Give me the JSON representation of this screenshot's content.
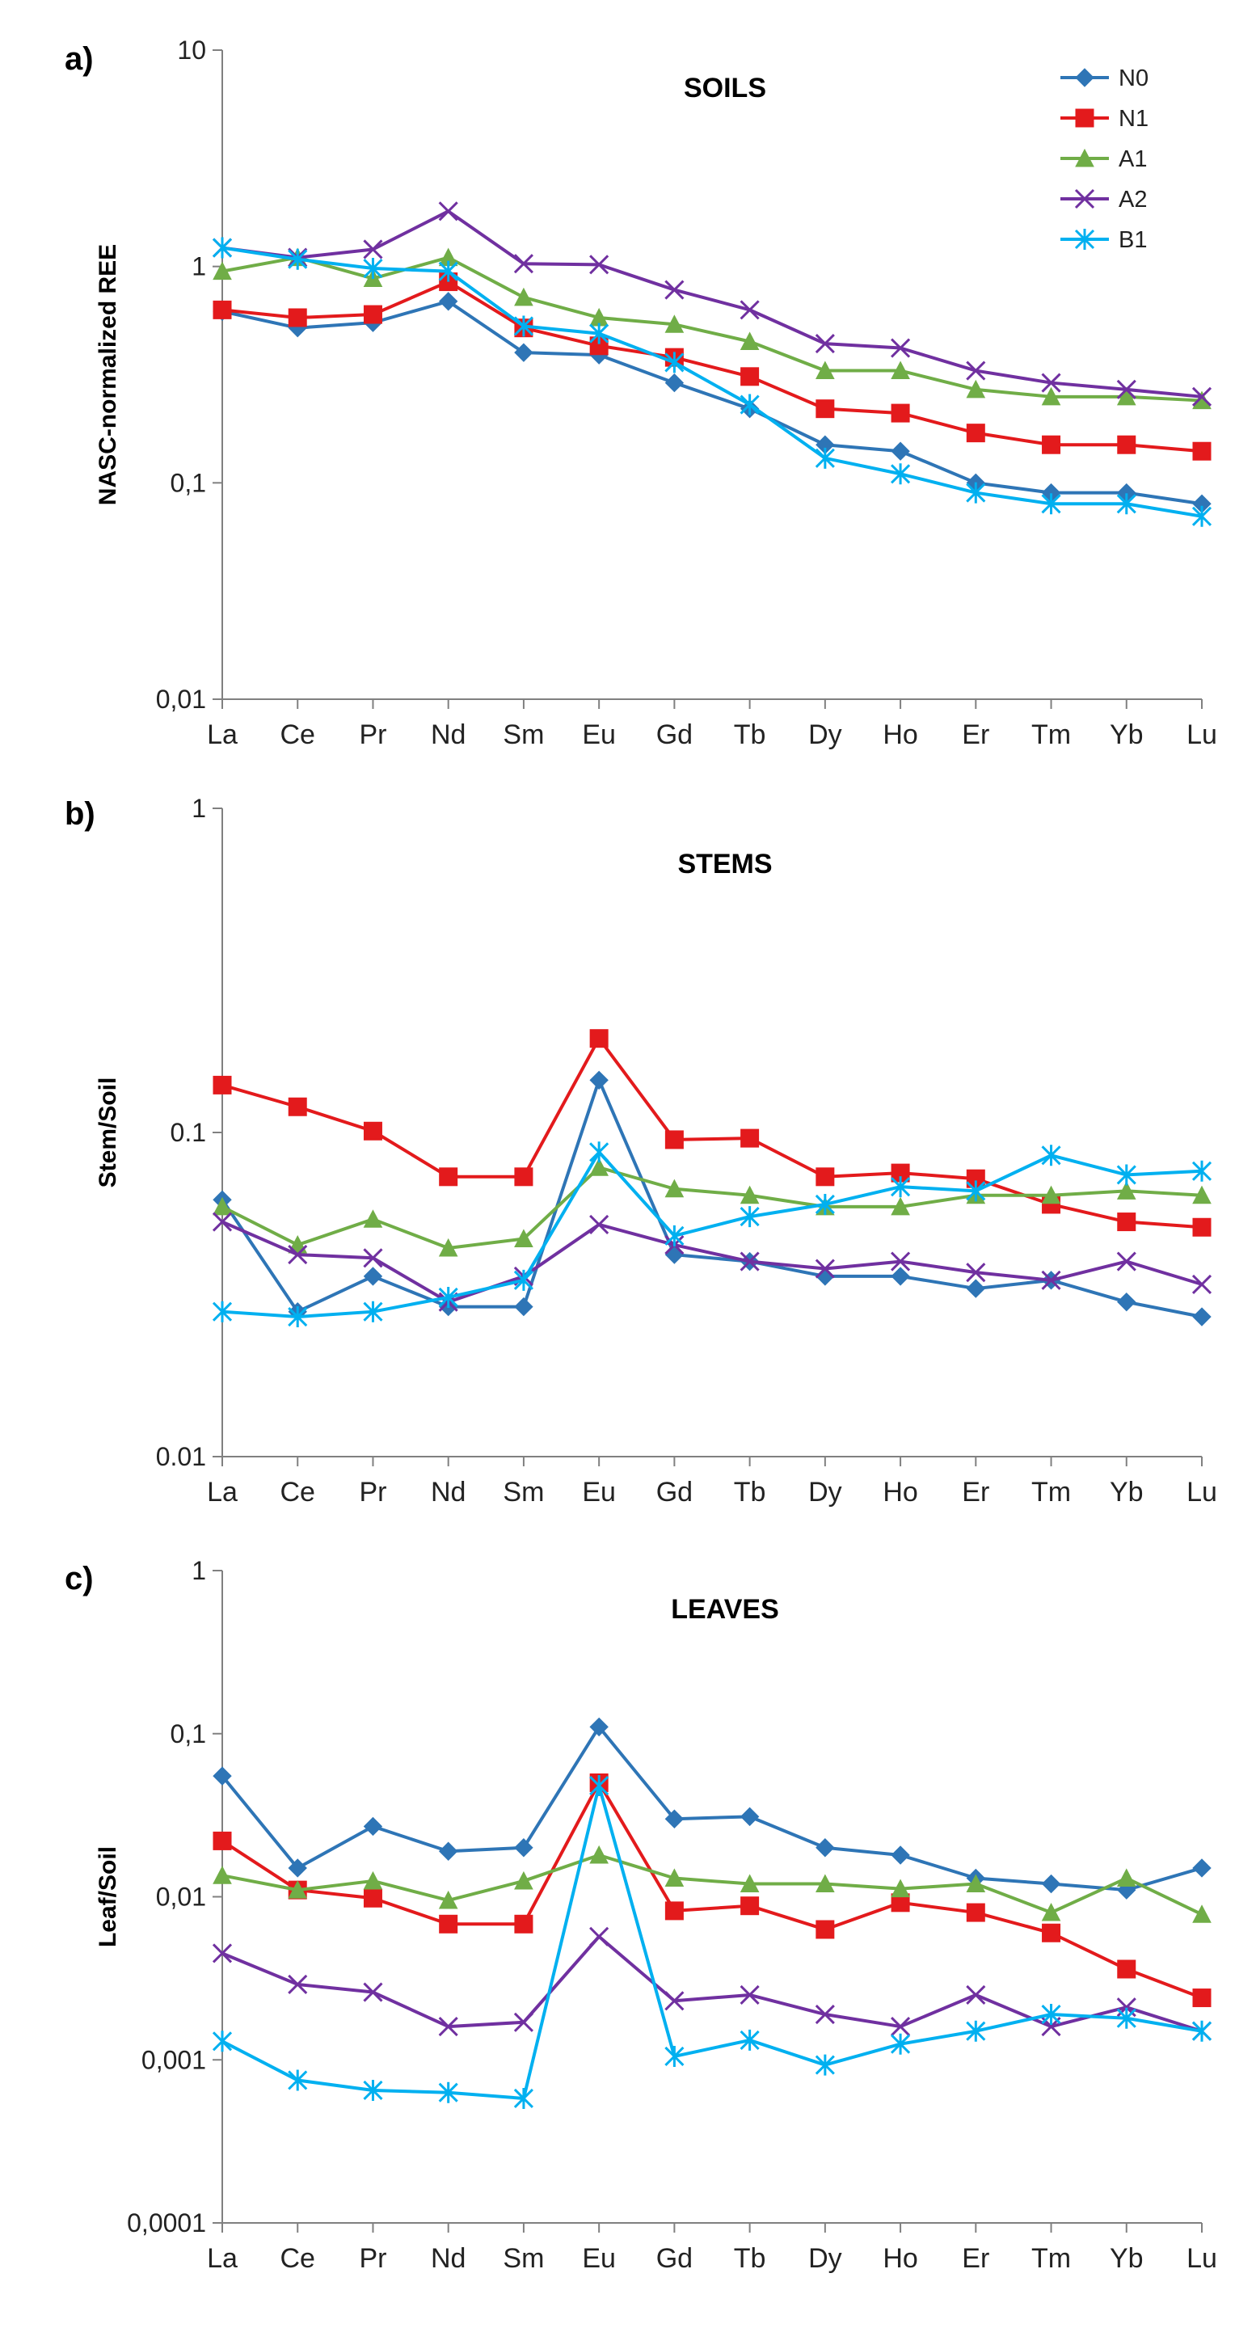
{
  "chart_data": [
    {
      "type": "line",
      "panel": "a)",
      "title": "SOILS",
      "ylabel": "NASC-normalized REE",
      "xlabel": "",
      "yscale": "log",
      "ylim": [
        0.01,
        10
      ],
      "yticks": [
        "0,01",
        "0,1",
        "1",
        "10"
      ],
      "categories": [
        "La",
        "Ce",
        "Pr",
        "Nd",
        "Sm",
        "Eu",
        "Gd",
        "Tb",
        "Dy",
        "Ho",
        "Er",
        "Tm",
        "Yb",
        "Lu"
      ],
      "legend": "top-right",
      "series": [
        {
          "name": "N0",
          "values": [
            0.62,
            0.52,
            0.55,
            0.69,
            0.4,
            0.39,
            0.29,
            0.22,
            0.15,
            0.14,
            0.1,
            0.09,
            0.09,
            0.08
          ]
        },
        {
          "name": "N1",
          "values": [
            0.63,
            0.58,
            0.6,
            0.85,
            0.52,
            0.43,
            0.38,
            0.31,
            0.22,
            0.21,
            0.17,
            0.15,
            0.15,
            0.14
          ]
        },
        {
          "name": "A1",
          "values": [
            0.95,
            1.1,
            0.88,
            1.1,
            0.72,
            0.58,
            0.54,
            0.45,
            0.33,
            0.33,
            0.27,
            0.25,
            0.25,
            0.24
          ]
        },
        {
          "name": "A2",
          "values": [
            1.22,
            1.1,
            1.2,
            1.8,
            1.03,
            1.02,
            0.78,
            0.63,
            0.44,
            0.42,
            0.33,
            0.29,
            0.27,
            0.25
          ]
        },
        {
          "name": "B1",
          "values": [
            1.22,
            1.08,
            0.98,
            0.95,
            0.53,
            0.49,
            0.36,
            0.23,
            0.13,
            0.11,
            0.09,
            0.08,
            0.08,
            0.07
          ]
        }
      ]
    },
    {
      "type": "line",
      "panel": "b)",
      "title": "STEMS",
      "ylabel": "Stem/Soil",
      "xlabel": "",
      "yscale": "log",
      "ylim": [
        0.01,
        1
      ],
      "yticks": [
        "0.01",
        "0.1",
        "1"
      ],
      "categories": [
        "La",
        "Ce",
        "Pr",
        "Nd",
        "Sm",
        "Eu",
        "Gd",
        "Tb",
        "Dy",
        "Ho",
        "Er",
        "Tm",
        "Yb",
        "Lu"
      ],
      "series": [
        {
          "name": "N0",
          "values": [
            0.062,
            0.028,
            0.036,
            0.029,
            0.029,
            0.145,
            0.042,
            0.04,
            0.036,
            0.036,
            0.033,
            0.035,
            0.03,
            0.027
          ]
        },
        {
          "name": "N1",
          "values": [
            0.14,
            0.12,
            0.101,
            0.073,
            0.073,
            0.195,
            0.095,
            0.096,
            0.073,
            0.075,
            0.072,
            0.06,
            0.053,
            0.051
          ]
        },
        {
          "name": "A1",
          "values": [
            0.059,
            0.045,
            0.054,
            0.044,
            0.047,
            0.078,
            0.067,
            0.064,
            0.059,
            0.059,
            0.064,
            0.064,
            0.066,
            0.064
          ]
        },
        {
          "name": "A2",
          "values": [
            0.053,
            0.042,
            0.041,
            0.03,
            0.036,
            0.052,
            0.045,
            0.04,
            0.038,
            0.04,
            0.037,
            0.035,
            0.04,
            0.034
          ]
        },
        {
          "name": "B1",
          "values": [
            0.028,
            0.027,
            0.028,
            0.031,
            0.035,
            0.087,
            0.048,
            0.055,
            0.06,
            0.068,
            0.066,
            0.085,
            0.074,
            0.076
          ]
        }
      ]
    },
    {
      "type": "line",
      "panel": "c)",
      "title": "LEAVES",
      "ylabel": "Leaf/Soil",
      "xlabel": "",
      "yscale": "log",
      "ylim": [
        0.0001,
        1
      ],
      "yticks": [
        "0,0001",
        "0,001",
        "0,01",
        "0,1",
        "1"
      ],
      "categories": [
        "La",
        "Ce",
        "Pr",
        "Nd",
        "Sm",
        "Eu",
        "Gd",
        "Tb",
        "Dy",
        "Ho",
        "Er",
        "Tm",
        "Yb",
        "Lu"
      ],
      "series": [
        {
          "name": "N0",
          "values": [
            0.055,
            0.015,
            0.027,
            0.019,
            0.02,
            0.11,
            0.03,
            0.031,
            0.02,
            0.018,
            0.013,
            0.012,
            0.011,
            0.015
          ]
        },
        {
          "name": "N1",
          "values": [
            0.022,
            0.011,
            0.0098,
            0.0068,
            0.0068,
            0.05,
            0.0082,
            0.0088,
            0.0063,
            0.0092,
            0.008,
            0.006,
            0.0036,
            0.0024
          ]
        },
        {
          "name": "A1",
          "values": [
            0.0135,
            0.011,
            0.0125,
            0.0095,
            0.0125,
            0.018,
            0.013,
            0.012,
            0.012,
            0.0112,
            0.012,
            0.008,
            0.013,
            0.0078
          ]
        },
        {
          "name": "A2",
          "values": [
            0.0045,
            0.0029,
            0.0026,
            0.0016,
            0.0017,
            0.0057,
            0.0023,
            0.0025,
            0.0019,
            0.0016,
            0.0025,
            0.0016,
            0.0021,
            0.0015
          ]
        },
        {
          "name": "B1",
          "values": [
            0.0013,
            0.00075,
            0.00065,
            0.00063,
            0.00058,
            0.048,
            0.00105,
            0.00132,
            0.00093,
            0.00125,
            0.0015,
            0.0019,
            0.0018,
            0.0015
          ]
        }
      ]
    }
  ],
  "styles": {
    "series_colors": {
      "N0": "#2e75b6",
      "N1": "#e31a1c",
      "A1": "#70ad47",
      "A2": "#7030a0",
      "B1": "#00b0f0"
    },
    "series_markers": {
      "N0": "diamond",
      "N1": "square",
      "A1": "triangle",
      "A2": "x",
      "B1": "asterisk"
    },
    "axis_color": "#808080"
  }
}
